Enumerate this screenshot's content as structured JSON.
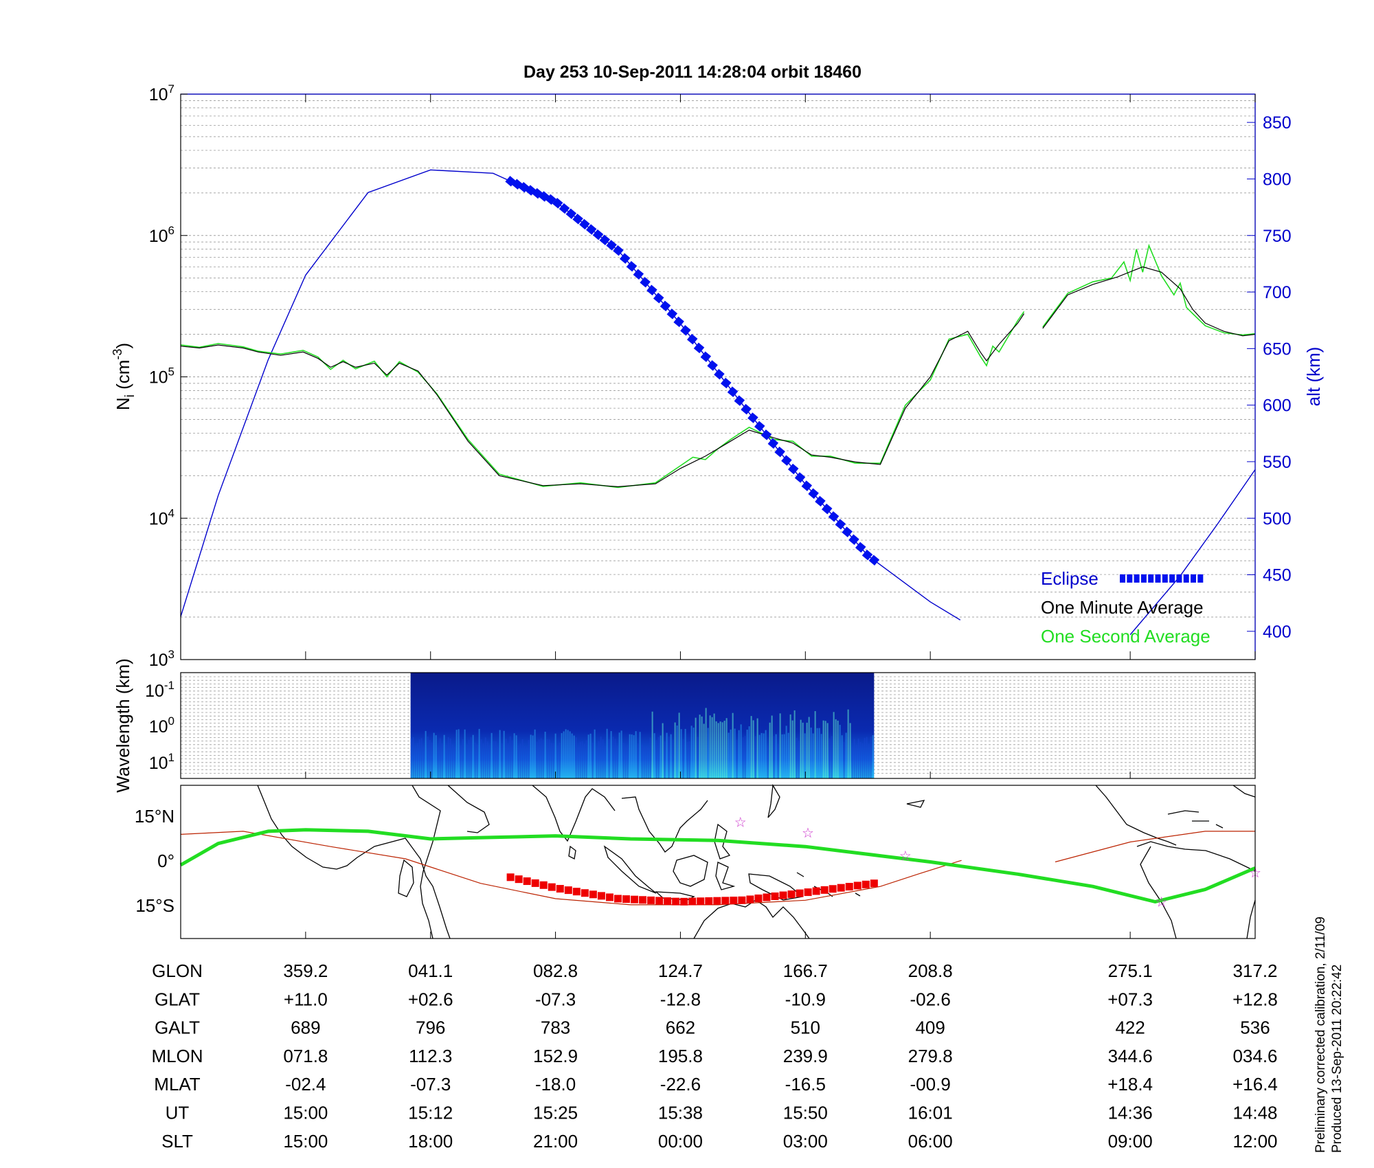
{
  "title": "Day 253  10-Sep-2011 14:28:04   orbit 18460",
  "colors": {
    "green": "#22dd22",
    "black": "#000000",
    "blue": "#0000cc",
    "eclipse_blue": "#0011ee",
    "red_eclipse": "#ee0000",
    "track_red": "#bb2200",
    "star": "#cc33cc"
  },
  "chart_data": [
    {
      "type": "line",
      "panel": "density",
      "ylabel_base": "N",
      "ylabel_sub": "i",
      "ylabel_unit": " (cm",
      "ylabel_exp": "-3",
      "ylabel_close": ")",
      "y_scale": "log",
      "ylim": [
        1000,
        10000000
      ],
      "y_ticks": [
        {
          "base": "10",
          "exp": "3",
          "v": 1000
        },
        {
          "base": "10",
          "exp": "4",
          "v": 10000
        },
        {
          "base": "10",
          "exp": "5",
          "v": 100000
        },
        {
          "base": "10",
          "exp": "6",
          "v": 1000000
        },
        {
          "base": "10",
          "exp": "7",
          "v": 10000000
        }
      ],
      "y2label": "alt (km)",
      "y2lim": [
        375,
        875
      ],
      "y2_ticks": [
        400,
        450,
        500,
        550,
        600,
        650,
        700,
        750,
        800,
        850
      ],
      "x_index_range": [
        0,
        8.6
      ],
      "x_ticks": [
        1,
        2,
        3,
        4,
        5,
        6,
        7.6,
        8.6
      ],
      "legend": [
        {
          "label": "Eclipse",
          "color": "blue"
        },
        {
          "label": "One Minute Average",
          "color": "black"
        },
        {
          "label": "One Second Average",
          "color": "green"
        }
      ],
      "legend_position": "bottom-right",
      "series": [
        {
          "name": "One Minute Average",
          "segments": [
            [
              [
                0,
                165000
              ],
              [
                0.15,
                160000
              ],
              [
                0.3,
                168000
              ],
              [
                0.5,
                160000
              ],
              [
                0.62,
                150000
              ],
              [
                0.8,
                142000
              ],
              [
                0.98,
                150000
              ],
              [
                1.1,
                135000
              ],
              [
                1.2,
                117000
              ],
              [
                1.3,
                128000
              ],
              [
                1.4,
                117000
              ],
              [
                1.55,
                125000
              ],
              [
                1.65,
                103000
              ],
              [
                1.75,
                125000
              ],
              [
                1.9,
                110000
              ],
              [
                2.05,
                75000
              ],
              [
                2.3,
                35000
              ],
              [
                2.55,
                20000
              ],
              [
                2.9,
                17000
              ],
              [
                3.2,
                17500
              ],
              [
                3.5,
                16700
              ],
              [
                3.8,
                17500
              ],
              [
                4.0,
                22500
              ],
              [
                4.2,
                27500
              ],
              [
                4.4,
                35000
              ],
              [
                4.55,
                42000
              ],
              [
                4.75,
                37000
              ],
              [
                4.9,
                34000
              ],
              [
                5.05,
                28000
              ],
              [
                5.2,
                27000
              ],
              [
                5.4,
                25000
              ],
              [
                5.6,
                24000
              ],
              [
                5.8,
                60000
              ],
              [
                6.0,
                100000
              ],
              [
                6.15,
                180000
              ],
              [
                6.3,
                210000
              ],
              [
                6.4,
                150000
              ],
              [
                6.45,
                130000
              ],
              [
                6.55,
                170000
              ],
              [
                6.7,
                240000
              ],
              [
                6.75,
                280000
              ]
            ],
            [
              [
                6.9,
                220000
              ],
              [
                7.1,
                380000
              ],
              [
                7.3,
                450000
              ],
              [
                7.5,
                510000
              ],
              [
                7.7,
                600000
              ],
              [
                7.85,
                550000
              ],
              [
                8.0,
                420000
              ],
              [
                8.1,
                300000
              ],
              [
                8.2,
                240000
              ],
              [
                8.35,
                210000
              ],
              [
                8.5,
                195000
              ],
              [
                8.6,
                200000
              ]
            ]
          ]
        },
        {
          "name": "One Second Average",
          "segments": [
            [
              [
                0,
                168000
              ],
              [
                0.15,
                162000
              ],
              [
                0.3,
                172000
              ],
              [
                0.5,
                163000
              ],
              [
                0.62,
                152000
              ],
              [
                0.8,
                145000
              ],
              [
                0.98,
                154000
              ],
              [
                1.1,
                138000
              ],
              [
                1.2,
                113000
              ],
              [
                1.3,
                131000
              ],
              [
                1.4,
                114000
              ],
              [
                1.55,
                129000
              ],
              [
                1.65,
                100000
              ],
              [
                1.75,
                128000
              ],
              [
                1.9,
                108000
              ],
              [
                2.05,
                76000
              ],
              [
                2.3,
                36000
              ],
              [
                2.55,
                20500
              ],
              [
                2.9,
                16800
              ],
              [
                3.2,
                17800
              ],
              [
                3.5,
                16500
              ],
              [
                3.8,
                17800
              ],
              [
                4.0,
                23500
              ],
              [
                4.1,
                27000
              ],
              [
                4.2,
                26000
              ],
              [
                4.3,
                31000
              ],
              [
                4.4,
                36000
              ],
              [
                4.55,
                44000
              ],
              [
                4.75,
                36000
              ],
              [
                4.9,
                35000
              ],
              [
                5.05,
                27500
              ],
              [
                5.2,
                27500
              ],
              [
                5.4,
                24500
              ],
              [
                5.6,
                24500
              ],
              [
                5.8,
                63000
              ],
              [
                6.0,
                95000
              ],
              [
                6.15,
                185000
              ],
              [
                6.3,
                200000
              ],
              [
                6.4,
                140000
              ],
              [
                6.45,
                120000
              ],
              [
                6.5,
                165000
              ],
              [
                6.55,
                150000
              ],
              [
                6.7,
                250000
              ],
              [
                6.75,
                290000
              ]
            ],
            [
              [
                6.9,
                225000
              ],
              [
                7.1,
                390000
              ],
              [
                7.3,
                470000
              ],
              [
                7.45,
                500000
              ],
              [
                7.55,
                650000
              ],
              [
                7.6,
                480000
              ],
              [
                7.65,
                800000
              ],
              [
                7.7,
                550000
              ],
              [
                7.75,
                850000
              ],
              [
                7.85,
                520000
              ],
              [
                7.95,
                380000
              ],
              [
                8.0,
                460000
              ],
              [
                8.05,
                310000
              ],
              [
                8.1,
                280000
              ],
              [
                8.2,
                230000
              ],
              [
                8.35,
                205000
              ],
              [
                8.5,
                198000
              ],
              [
                8.6,
                202000
              ]
            ]
          ]
        },
        {
          "name": "alt",
          "axis": "y2",
          "segments": [
            [
              [
                0,
                413
              ],
              [
                0.3,
                520
              ],
              [
                0.7,
                640
              ],
              [
                1.0,
                715
              ],
              [
                1.5,
                788
              ],
              [
                2.0,
                808
              ],
              [
                2.5,
                805
              ],
              [
                3.0,
                780
              ],
              [
                3.5,
                737
              ],
              [
                4.0,
                672
              ],
              [
                4.5,
                600
              ],
              [
                5.0,
                530
              ],
              [
                5.5,
                467
              ],
              [
                6.0,
                426
              ],
              [
                6.24,
                410
              ]
            ],
            [
              [
                7.6,
                397
              ],
              [
                8.0,
                449
              ],
              [
                8.3,
                495
              ],
              [
                8.6,
                543
              ]
            ]
          ]
        },
        {
          "name": "Eclipse",
          "axis": "y2",
          "x": [
            2.64,
            5.55
          ],
          "values": [
            803,
            438
          ]
        }
      ]
    },
    {
      "type": "heatmap",
      "panel": "spectrogram",
      "ylabel": "Wavelength (km)",
      "y_ticks": [
        {
          "base": "10",
          "exp": "-1"
        },
        {
          "base": "10",
          "exp": "0"
        },
        {
          "base": "10",
          "exp": "1"
        }
      ],
      "x_range": [
        1.84,
        5.55
      ]
    },
    {
      "type": "line",
      "panel": "map",
      "y_ticks": [
        "15°N",
        "0°",
        "15°S"
      ],
      "ylim": [
        -24,
        26
      ],
      "series": [
        {
          "name": "magnetic equator",
          "values": [
            [
              0,
              10
            ],
            [
              0.5,
              11
            ],
            [
              1.2,
              6
            ],
            [
              1.8,
              2
            ],
            [
              2.4,
              -6
            ],
            [
              3.0,
              -11
            ],
            [
              3.6,
              -13
            ],
            [
              4.3,
              -13
            ],
            [
              5.0,
              -11.5
            ],
            [
              5.6,
              -7
            ],
            [
              5.9,
              -3
            ],
            [
              6.25,
              1.5
            ]
          ],
          "values2": [
            [
              7.0,
              1
            ],
            [
              7.6,
              7.5
            ],
            [
              8.2,
              11
            ],
            [
              8.6,
              11
            ]
          ]
        },
        {
          "name": "track",
          "values": [
            [
              0,
              0
            ],
            [
              0.3,
              7
            ],
            [
              0.7,
              11
            ],
            [
              1.0,
              11.5
            ],
            [
              1.5,
              11
            ],
            [
              2.0,
              8.5
            ],
            [
              2.5,
              9
            ],
            [
              3.0,
              9.5
            ],
            [
              3.6,
              8.5
            ],
            [
              4.3,
              8
            ],
            [
              5.0,
              6
            ],
            [
              5.6,
              3
            ],
            [
              6.0,
              1
            ],
            [
              6.7,
              -3
            ],
            [
              7.3,
              -7
            ],
            [
              7.8,
              -12
            ],
            [
              8.2,
              -8
            ],
            [
              8.6,
              -1
            ]
          ]
        },
        {
          "name": "eclipse track",
          "x": [
            2.64,
            5.55
          ],
          "values": [
            [
              2.64,
              -4
            ],
            [
              3.0,
              -7.5
            ],
            [
              3.5,
              -11
            ],
            [
              4.0,
              -12
            ],
            [
              4.5,
              -11.5
            ],
            [
              5.0,
              -9
            ],
            [
              5.55,
              -6
            ]
          ]
        },
        {
          "name": "stars",
          "values": [
            [
              4.48,
              14
            ],
            [
              5.02,
              10.5
            ],
            [
              5.8,
              3
            ],
            [
              7.85,
              -12
            ],
            [
              8.6,
              -2.5
            ]
          ]
        }
      ]
    }
  ],
  "table": {
    "rows": [
      {
        "label": "GLON",
        "values": [
          "359.2",
          "041.1",
          "082.8",
          "124.7",
          "166.7",
          "208.8",
          "275.1",
          "317.2"
        ]
      },
      {
        "label": "GLAT",
        "values": [
          "+11.0",
          "+02.6",
          "-07.3",
          "-12.8",
          "-10.9",
          "-02.6",
          "+07.3",
          "+12.8"
        ]
      },
      {
        "label": "GALT",
        "values": [
          "689",
          "796",
          "783",
          "662",
          "510",
          "409",
          "422",
          "536"
        ]
      },
      {
        "label": "MLON",
        "values": [
          "071.8",
          "112.3",
          "152.9",
          "195.8",
          "239.9",
          "279.8",
          "344.6",
          "034.6"
        ]
      },
      {
        "label": "MLAT",
        "values": [
          "-02.4",
          "-07.3",
          "-18.0",
          "-22.6",
          "-16.5",
          "-00.9",
          "+18.4",
          "+16.4"
        ]
      },
      {
        "label": "UT",
        "values": [
          "15:00",
          "15:12",
          "15:25",
          "15:38",
          "15:50",
          "16:01",
          "14:36",
          "14:48"
        ]
      },
      {
        "label": "SLT",
        "values": [
          "15:00",
          "18:00",
          "21:00",
          "00:00",
          "03:00",
          "06:00",
          "09:00",
          "12:00"
        ]
      }
    ]
  },
  "footnote": {
    "line1": "Preliminary corrected calibration, 2/11/09",
    "line2": "Produced 13-Sep-2011 20:22:42"
  }
}
